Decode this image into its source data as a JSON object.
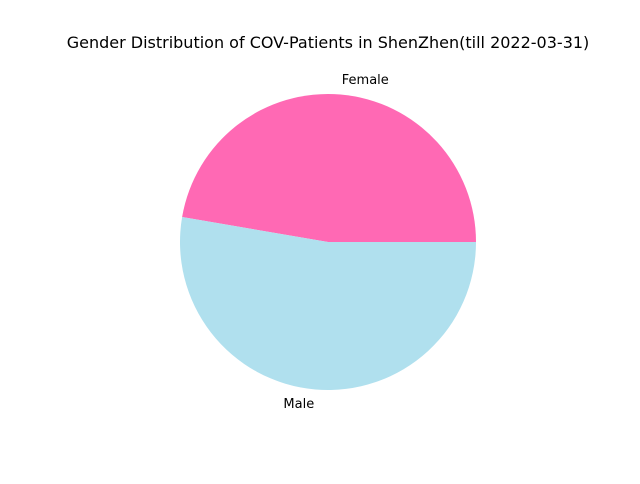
{
  "chart_data": {
    "type": "pie",
    "title": "Gender Distribution of COV-Patients in ShenZhen(till 2022-03-31)",
    "categories": [
      "Female",
      "Male"
    ],
    "values": [
      47.3,
      52.7
    ],
    "colors": [
      "#ff69b4",
      "#b0e0ee"
    ],
    "start_angle_degrees": 0,
    "direction": "counterclockwise",
    "legend": "none"
  }
}
